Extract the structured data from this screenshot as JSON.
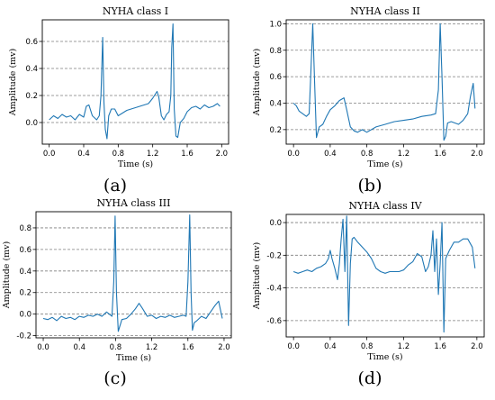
{
  "panel_letters": [
    "(a)",
    "(b)",
    "(c)",
    "(d)"
  ],
  "style": {
    "line_color": "#1f77b4",
    "grid_color": "#7f7f7f",
    "axis_color": "#000000"
  },
  "chart_data": [
    {
      "type": "line",
      "title": "NYHA class I",
      "xlabel": "Time (s)",
      "ylabel": "Amplitude (mv)",
      "xlim": [
        -0.08,
        2.08
      ],
      "ylim": [
        -0.16,
        0.76
      ],
      "xticks": [
        0.0,
        0.4,
        0.8,
        1.2,
        1.6,
        2.0
      ],
      "xtick_labels": [
        "0.0",
        "0.4",
        "0.8",
        "1.2",
        "1.6",
        "2.0"
      ],
      "yticks": [
        0.0,
        0.2,
        0.4,
        0.6
      ],
      "ytick_labels": [
        "0.0",
        "0.2",
        "0.4",
        "0.6"
      ],
      "grid": "y-dashed",
      "series": [
        {
          "x": [
            0.0,
            0.05,
            0.1,
            0.15,
            0.2,
            0.25,
            0.3,
            0.35,
            0.4,
            0.43,
            0.46,
            0.5,
            0.55,
            0.58,
            0.6,
            0.62,
            0.635,
            0.65,
            0.67,
            0.69,
            0.72,
            0.76,
            0.8,
            0.85,
            0.9,
            0.95,
            1.0,
            1.05,
            1.1,
            1.15,
            1.2,
            1.25,
            1.27,
            1.3,
            1.33,
            1.36,
            1.39,
            1.41,
            1.42,
            1.435,
            1.45,
            1.47,
            1.49,
            1.52,
            1.56,
            1.6,
            1.65,
            1.7,
            1.75,
            1.8,
            1.85,
            1.9,
            1.95,
            1.98
          ],
          "y": [
            0.02,
            0.05,
            0.03,
            0.06,
            0.04,
            0.05,
            0.02,
            0.06,
            0.04,
            0.12,
            0.13,
            0.05,
            0.02,
            0.05,
            0.2,
            0.63,
            0.15,
            -0.05,
            -0.12,
            0.05,
            0.1,
            0.1,
            0.05,
            0.07,
            0.09,
            0.1,
            0.11,
            0.12,
            0.13,
            0.14,
            0.18,
            0.23,
            0.19,
            0.05,
            0.02,
            0.06,
            0.08,
            0.2,
            0.55,
            0.73,
            0.1,
            -0.1,
            -0.11,
            0.0,
            0.03,
            0.08,
            0.11,
            0.12,
            0.1,
            0.13,
            0.11,
            0.12,
            0.14,
            0.12
          ]
        }
      ]
    },
    {
      "type": "line",
      "title": "NYHA class II",
      "xlabel": "Time (s)",
      "ylabel": "Amplitude (mv)",
      "xlim": [
        -0.08,
        2.08
      ],
      "ylim": [
        0.09,
        1.03
      ],
      "xticks": [
        0.0,
        0.4,
        0.8,
        1.2,
        1.6,
        2.0
      ],
      "xtick_labels": [
        "0.0",
        "0.4",
        "0.8",
        "1.2",
        "1.6",
        "2.0"
      ],
      "yticks": [
        0.2,
        0.4,
        0.6,
        0.8,
        1.0
      ],
      "ytick_labels": [
        "0.2",
        "0.4",
        "0.6",
        "0.8",
        "1.0"
      ],
      "grid": "y-dashed",
      "series": [
        {
          "x": [
            0.0,
            0.03,
            0.06,
            0.1,
            0.14,
            0.17,
            0.19,
            0.21,
            0.23,
            0.25,
            0.28,
            0.32,
            0.36,
            0.4,
            0.45,
            0.5,
            0.55,
            0.58,
            0.62,
            0.66,
            0.7,
            0.75,
            0.8,
            0.9,
            1.0,
            1.1,
            1.2,
            1.3,
            1.4,
            1.5,
            1.55,
            1.58,
            1.6,
            1.62,
            1.64,
            1.66,
            1.68,
            1.72,
            1.76,
            1.8,
            1.85,
            1.9,
            1.93,
            1.96,
            1.98
          ],
          "y": [
            0.4,
            0.38,
            0.34,
            0.32,
            0.3,
            0.32,
            0.65,
            1.0,
            0.55,
            0.14,
            0.22,
            0.24,
            0.3,
            0.35,
            0.38,
            0.42,
            0.44,
            0.35,
            0.22,
            0.19,
            0.18,
            0.2,
            0.18,
            0.22,
            0.24,
            0.26,
            0.27,
            0.28,
            0.3,
            0.31,
            0.32,
            0.5,
            1.0,
            0.6,
            0.12,
            0.15,
            0.25,
            0.26,
            0.25,
            0.24,
            0.27,
            0.32,
            0.45,
            0.55,
            0.36
          ]
        }
      ]
    },
    {
      "type": "line",
      "title": "NYHA class III",
      "xlabel": "Time (s)",
      "ylabel": "Amplitude (mv)",
      "xlim": [
        -0.08,
        2.08
      ],
      "ylim": [
        -0.22,
        0.95
      ],
      "xticks": [
        0.0,
        0.4,
        0.8,
        1.2,
        1.6,
        2.0
      ],
      "xtick_labels": [
        "0.0",
        "0.4",
        "0.8",
        "1.2",
        "1.6",
        "2.0"
      ],
      "yticks": [
        -0.2,
        0.0,
        0.2,
        0.4,
        0.6,
        0.8
      ],
      "ytick_labels": [
        "-0.2",
        "0.0",
        "0.2",
        "0.4",
        "0.6",
        "0.8"
      ],
      "grid": "y-dashed",
      "series": [
        {
          "x": [
            0.0,
            0.05,
            0.1,
            0.15,
            0.2,
            0.25,
            0.3,
            0.35,
            0.4,
            0.45,
            0.5,
            0.55,
            0.6,
            0.65,
            0.7,
            0.73,
            0.76,
            0.78,
            0.795,
            0.81,
            0.83,
            0.87,
            0.92,
            0.97,
            1.02,
            1.06,
            1.1,
            1.15,
            1.2,
            1.25,
            1.3,
            1.35,
            1.4,
            1.45,
            1.5,
            1.55,
            1.58,
            1.6,
            1.62,
            1.635,
            1.65,
            1.67,
            1.7,
            1.75,
            1.8,
            1.85,
            1.9,
            1.94,
            1.98
          ],
          "y": [
            -0.04,
            -0.05,
            -0.03,
            -0.06,
            -0.02,
            -0.04,
            -0.03,
            -0.05,
            -0.02,
            -0.03,
            -0.01,
            -0.02,
            0.0,
            -0.02,
            0.02,
            0.0,
            -0.02,
            0.3,
            0.91,
            0.2,
            -0.16,
            -0.05,
            -0.04,
            0.0,
            0.05,
            0.1,
            0.05,
            -0.02,
            -0.01,
            -0.04,
            -0.02,
            -0.03,
            -0.01,
            -0.03,
            -0.02,
            -0.01,
            -0.02,
            0.3,
            0.92,
            0.2,
            -0.15,
            -0.08,
            -0.06,
            -0.02,
            -0.04,
            0.02,
            0.08,
            0.12,
            -0.04
          ]
        }
      ]
    },
    {
      "type": "line",
      "title": "NYHA class IV",
      "xlabel": "Time (s)",
      "ylabel": "Amplitude (mv)",
      "xlim": [
        -0.08,
        2.08
      ],
      "ylim": [
        -0.7,
        0.05
      ],
      "xticks": [
        0.0,
        0.4,
        0.8,
        1.2,
        1.6,
        2.0
      ],
      "xtick_labels": [
        "0.0",
        "0.4",
        "0.8",
        "1.2",
        "1.6",
        "2.0"
      ],
      "yticks": [
        -0.6,
        -0.4,
        -0.2,
        0.0
      ],
      "ytick_labels": [
        "-0.6",
        "-0.4",
        "-0.2",
        "0.0"
      ],
      "grid": "y-dashed",
      "series": [
        {
          "x": [
            0.0,
            0.05,
            0.1,
            0.15,
            0.2,
            0.25,
            0.3,
            0.35,
            0.38,
            0.4,
            0.42,
            0.45,
            0.48,
            0.5,
            0.52,
            0.54,
            0.56,
            0.58,
            0.6,
            0.62,
            0.64,
            0.66,
            0.7,
            0.75,
            0.8,
            0.85,
            0.9,
            0.95,
            1.0,
            1.05,
            1.1,
            1.15,
            1.2,
            1.25,
            1.3,
            1.35,
            1.4,
            1.44,
            1.47,
            1.5,
            1.52,
            1.54,
            1.56,
            1.58,
            1.6,
            1.62,
            1.64,
            1.66,
            1.7,
            1.75,
            1.8,
            1.85,
            1.9,
            1.95,
            1.98
          ],
          "y": [
            -0.3,
            -0.31,
            -0.3,
            -0.29,
            -0.3,
            -0.28,
            -0.27,
            -0.25,
            -0.22,
            -0.17,
            -0.22,
            -0.28,
            -0.35,
            -0.25,
            -0.1,
            0.02,
            -0.3,
            0.04,
            -0.63,
            -0.25,
            -0.1,
            -0.09,
            -0.12,
            -0.15,
            -0.18,
            -0.22,
            -0.28,
            -0.3,
            -0.31,
            -0.3,
            -0.3,
            -0.3,
            -0.29,
            -0.26,
            -0.24,
            -0.19,
            -0.21,
            -0.3,
            -0.27,
            -0.2,
            -0.05,
            -0.3,
            -0.1,
            -0.44,
            -0.25,
            0.0,
            -0.67,
            -0.22,
            -0.17,
            -0.12,
            -0.12,
            -0.1,
            -0.1,
            -0.15,
            -0.28
          ]
        }
      ]
    }
  ]
}
